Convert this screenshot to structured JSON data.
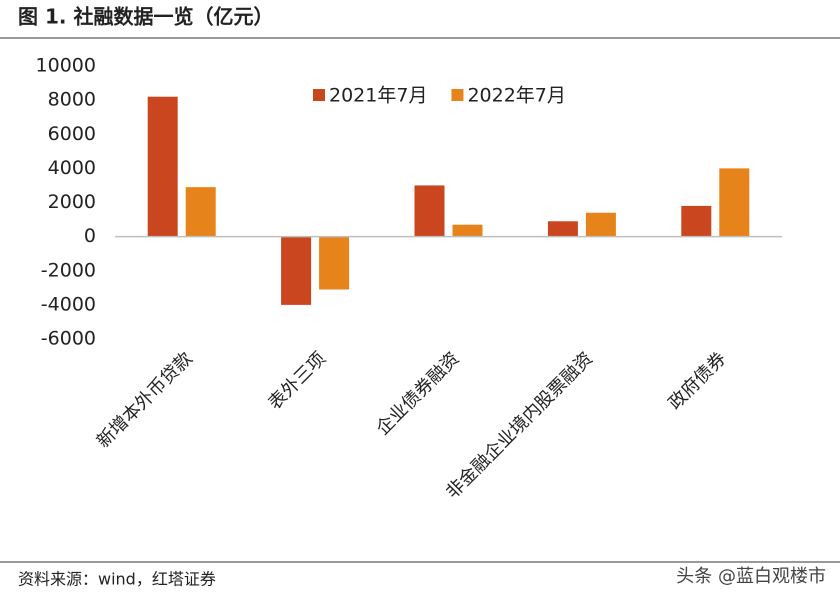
{
  "chart_data": {
    "type": "bar",
    "title": "图 1. 社融数据一览（亿元）",
    "categories": [
      "新增本外币贷款",
      "表外三项",
      "企业债券融资",
      "非金融企业境内股票融资",
      "政府债券"
    ],
    "series": [
      {
        "name": "2021年7月",
        "color": "#c9461e",
        "values": [
          8200,
          -4000,
          3000,
          900,
          1800
        ]
      },
      {
        "name": "2022年7月",
        "color": "#e6841b",
        "values": [
          2900,
          -3100,
          700,
          1400,
          4000
        ]
      }
    ],
    "ylim": [
      -6000,
      10000
    ],
    "yticks": [
      -6000,
      -4000,
      -2000,
      0,
      2000,
      4000,
      6000,
      8000,
      10000
    ],
    "grid": false,
    "legend": "top",
    "source": "资料来源：wind，红塔证券",
    "watermark": "头条 @蓝白观楼市"
  }
}
